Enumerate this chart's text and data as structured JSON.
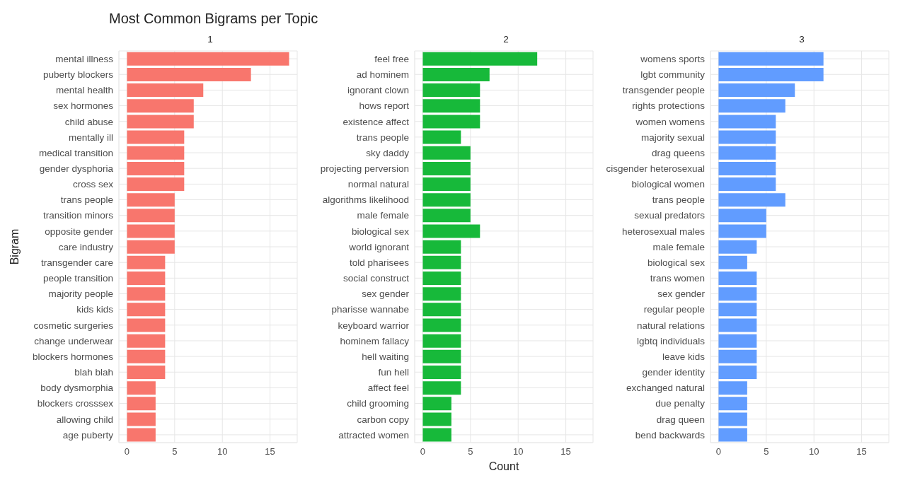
{
  "chart_data": [
    {
      "type": "bar",
      "orientation": "horizontal",
      "title": "Most Common Bigrams per Topic",
      "subtitle": "1",
      "ylabel": "Bigram",
      "categories": [
        "mental illness",
        "puberty blockers",
        "mental health",
        "sex hormones",
        "child abuse",
        "mentally ill",
        "medical transition",
        "gender dysphoria",
        "cross sex",
        "trans people",
        "transition minors",
        "opposite gender",
        "care industry",
        "transgender care",
        "people transition",
        "majority people",
        "kids kids",
        "cosmetic surgeries",
        "change underwear",
        "blockers hormones",
        "blah blah",
        "body dysmorphia",
        "blockers crosssex",
        "allowing child",
        "age puberty"
      ],
      "values": [
        17,
        13,
        8,
        7,
        7,
        6,
        6,
        6,
        6,
        5,
        5,
        5,
        5,
        4,
        4,
        4,
        4,
        4,
        4,
        4,
        4,
        3,
        3,
        3,
        3
      ],
      "color": "#f8766d",
      "xlim": [
        -0.85,
        17.85
      ],
      "xticks": [
        0,
        5,
        10,
        15
      ],
      "grid": true,
      "legend": false
    },
    {
      "type": "bar",
      "orientation": "horizontal",
      "subtitle": "2",
      "xlabel": "Count",
      "categories": [
        "feel free",
        "ad hominem",
        "ignorant clown",
        "hows report",
        "existence affect",
        "trans people",
        "sky daddy",
        "projecting perversion",
        "normal natural",
        "algorithms likelihood",
        "male female",
        "biological sex",
        "world ignorant",
        "told pharisees",
        "social construct",
        "sex gender",
        "pharisse wannabe",
        "keyboard warrior",
        "hominem fallacy",
        "hell waiting",
        "fun hell",
        "affect feel",
        "child grooming",
        "carbon copy",
        "attracted women"
      ],
      "values": [
        12,
        7,
        6,
        6,
        6,
        4,
        5,
        5,
        5,
        5,
        5,
        6,
        4,
        4,
        4,
        4,
        4,
        4,
        4,
        4,
        4,
        4,
        3,
        3,
        3
      ],
      "color": "#17b93a",
      "xlim": [
        -0.85,
        17.85
      ],
      "xticks": [
        0,
        5,
        10,
        15
      ],
      "grid": true,
      "legend": false
    },
    {
      "type": "bar",
      "orientation": "horizontal",
      "subtitle": "3",
      "categories": [
        "womens sports",
        "lgbt community",
        "transgender people",
        "rights protections",
        "women womens",
        "majority sexual",
        "drag queens",
        "cisgender heterosexual",
        "biological women",
        "trans people",
        "sexual predators",
        "heterosexual males",
        "male female",
        "biological sex",
        "trans women",
        "sex gender",
        "regular people",
        "natural relations",
        "lgbtq individuals",
        "leave kids",
        "gender identity",
        "exchanged natural",
        "due penalty",
        "drag queen",
        "bend backwards"
      ],
      "values": [
        11,
        11,
        8,
        7,
        6,
        6,
        6,
        6,
        6,
        7,
        5,
        5,
        4,
        3,
        4,
        4,
        4,
        4,
        4,
        4,
        4,
        3,
        3,
        3,
        3
      ],
      "color": "#619cff",
      "xlim": [
        -0.85,
        17.85
      ],
      "xticks": [
        0,
        5,
        10,
        15
      ],
      "grid": true,
      "legend": false
    }
  ]
}
